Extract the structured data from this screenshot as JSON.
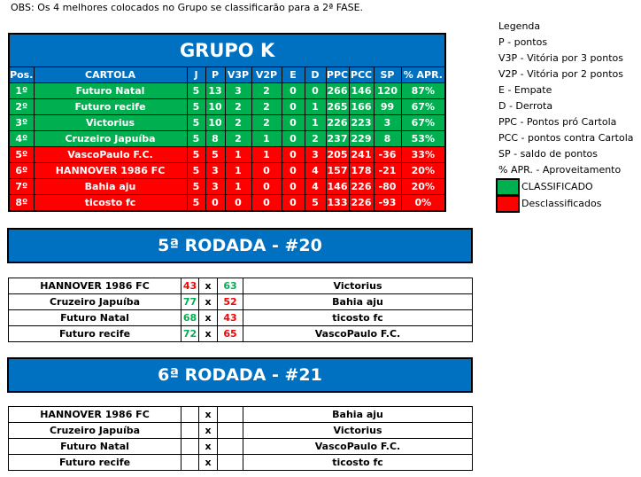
{
  "obs": "OBS: Os 4 melhores colocados no Grupo se classificarão para a 2ª FASE.",
  "standings": {
    "title": "GRUPO K",
    "headers": [
      "Pos.",
      "CARTOLA",
      "J",
      "P",
      "V3P",
      "V2P",
      "E",
      "D",
      "PPC",
      "PCC",
      "SP",
      "% APR."
    ],
    "rows": [
      {
        "status": "classified",
        "cells": [
          "1º",
          "Futuro Natal",
          "5",
          "13",
          "3",
          "2",
          "0",
          "0",
          "266",
          "146",
          "120",
          "87%"
        ]
      },
      {
        "status": "classified",
        "cells": [
          "2º",
          "Futuro recife",
          "5",
          "10",
          "2",
          "2",
          "0",
          "1",
          "265",
          "166",
          "99",
          "67%"
        ]
      },
      {
        "status": "classified",
        "cells": [
          "3º",
          "Victorius",
          "5",
          "10",
          "2",
          "2",
          "0",
          "1",
          "226",
          "223",
          "3",
          "67%"
        ]
      },
      {
        "status": "classified",
        "cells": [
          "4º",
          "Cruzeiro Japuíba",
          "5",
          "8",
          "2",
          "1",
          "0",
          "2",
          "237",
          "229",
          "8",
          "53%"
        ]
      },
      {
        "status": "eliminated",
        "cells": [
          "5º",
          "VascoPaulo F.C.",
          "5",
          "5",
          "1",
          "1",
          "0",
          "3",
          "205",
          "241",
          "-36",
          "33%"
        ]
      },
      {
        "status": "eliminated",
        "cells": [
          "6º",
          "HANNOVER 1986 FC",
          "5",
          "3",
          "1",
          "0",
          "0",
          "4",
          "157",
          "178",
          "-21",
          "20%"
        ]
      },
      {
        "status": "eliminated",
        "cells": [
          "7º",
          "Bahia aju",
          "5",
          "3",
          "1",
          "0",
          "0",
          "4",
          "146",
          "226",
          "-80",
          "20%"
        ]
      },
      {
        "status": "eliminated",
        "cells": [
          "8º",
          "ticosto fc",
          "5",
          "0",
          "0",
          "0",
          "0",
          "5",
          "133",
          "226",
          "-93",
          "0%"
        ]
      }
    ]
  },
  "legend": {
    "title": "Legenda",
    "items": [
      "P - pontos",
      "V3P - Vitória por 3 pontos",
      "V2P - Vitória por 2 pontos",
      "E - Empate",
      "D - Derrota",
      "PPC - Pontos pró Cartola",
      "PCC - pontos contra Cartola",
      "SP - saldo de pontos",
      "% APR. - Aproveitamento"
    ],
    "classified": "CLASSIFICADO",
    "eliminated": "Desclassificados"
  },
  "colors": {
    "header": "#0070c0",
    "classified": "#00b050",
    "eliminated": "#ff0000"
  },
  "round5": {
    "title": "5ª RODADA - #20",
    "matches": [
      {
        "home": "HANNOVER 1986 FC",
        "hs": "43",
        "hc": "sr",
        "vs": "x",
        "as": "63",
        "ac": "sg",
        "away": "Victorius"
      },
      {
        "home": "Cruzeiro Japuíba",
        "hs": "77",
        "hc": "sg",
        "vs": "x",
        "as": "52",
        "ac": "sr",
        "away": "Bahia aju"
      },
      {
        "home": "Futuro Natal",
        "hs": "68",
        "hc": "sg",
        "vs": "x",
        "as": "43",
        "ac": "sr",
        "away": "ticosto fc"
      },
      {
        "home": "Futuro recife",
        "hs": "72",
        "hc": "sg",
        "vs": "x",
        "as": "65",
        "ac": "sr",
        "away": "VascoPaulo F.C."
      }
    ]
  },
  "round6": {
    "title": "6ª RODADA - #21",
    "matches": [
      {
        "home": "HANNOVER 1986 FC",
        "hs": "",
        "vs": "x",
        "as": "",
        "away": "Bahia aju"
      },
      {
        "home": "Cruzeiro Japuíba",
        "hs": "",
        "vs": "x",
        "as": "",
        "away": "Victorius"
      },
      {
        "home": "Futuro Natal",
        "hs": "",
        "vs": "x",
        "as": "",
        "away": "VascoPaulo F.C."
      },
      {
        "home": "Futuro recife",
        "hs": "",
        "vs": "x",
        "as": "",
        "away": "ticosto fc"
      }
    ]
  }
}
